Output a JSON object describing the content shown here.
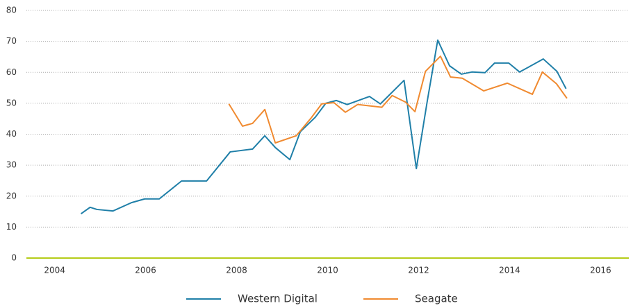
{
  "chart_data": {
    "type": "line",
    "xlim": [
      2003.38,
      2016.62
    ],
    "xticks": [
      2004,
      2006,
      2008,
      2010,
      2012,
      2014,
      2016
    ],
    "ylim": [
      0,
      80
    ],
    "yticks": [
      0,
      10,
      20,
      30,
      40,
      50,
      60,
      70,
      80
    ],
    "grid": true,
    "legend": "bottom",
    "series": [
      {
        "name": "Western Digital",
        "color": "#1f7fa8",
        "x": [
          2004.58,
          2004.78,
          2004.93,
          2005.28,
          2005.69,
          2005.98,
          2006.3,
          2006.79,
          2007.34,
          2007.86,
          2008.35,
          2008.62,
          2008.85,
          2009.17,
          2009.4,
          2009.73,
          2009.96,
          2010.19,
          2010.43,
          2010.92,
          2011.16,
          2011.68,
          2011.95,
          2012.19,
          2012.42,
          2012.68,
          2012.94,
          2013.17,
          2013.46,
          2013.67,
          2013.98,
          2014.22,
          2014.74,
          2015.04,
          2015.24
        ],
        "values": [
          14.3,
          16.4,
          15.7,
          15.2,
          17.9,
          19.1,
          19.1,
          24.9,
          24.9,
          34.3,
          35.2,
          39.5,
          35.7,
          31.8,
          40.8,
          45.5,
          50,
          50.9,
          49.6,
          52.2,
          49.8,
          57.4,
          28.9,
          50.7,
          70.4,
          62.1,
          59.4,
          60.1,
          59.9,
          63,
          63,
          60.1,
          64.3,
          60.3,
          54.7
        ]
      },
      {
        "name": "Seagate",
        "color": "#f08a30",
        "x": [
          2007.83,
          2008.13,
          2008.35,
          2008.62,
          2008.85,
          2009.31,
          2009.64,
          2009.87,
          2010.14,
          2010.39,
          2010.66,
          2011.19,
          2011.42,
          2011.71,
          2011.92,
          2012.15,
          2012.48,
          2012.7,
          2012.96,
          2013.43,
          2013.95,
          2014.5,
          2014.72,
          2015.03,
          2015.26
        ],
        "values": [
          49.8,
          42.6,
          43.5,
          48,
          37.2,
          39.5,
          45.3,
          49.8,
          50.2,
          47.1,
          49.6,
          48.7,
          52.5,
          50.4,
          47.3,
          60.3,
          65.2,
          58.5,
          58.1,
          54,
          56.5,
          52.9,
          60.1,
          56.3,
          51.6
        ]
      }
    ]
  }
}
